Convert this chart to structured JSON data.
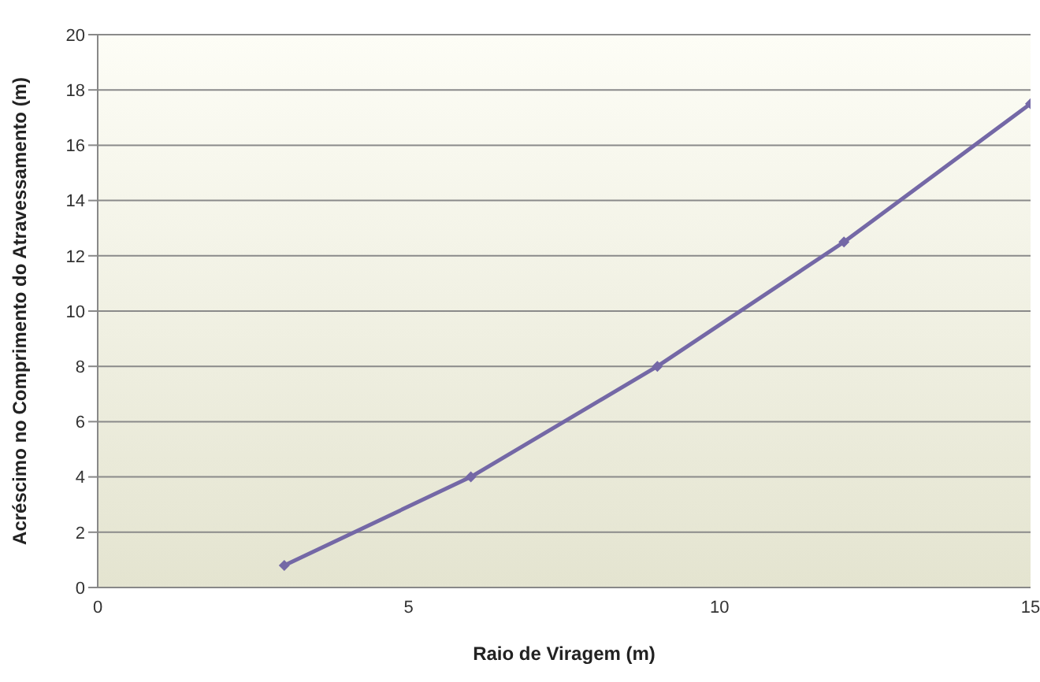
{
  "chart_data": {
    "type": "line",
    "xlabel": "Raio de Viragem (m)",
    "ylabel": "Acréscimo no Comprimento do Atravessamento (m)",
    "x": [
      3,
      6,
      9,
      12,
      15
    ],
    "series": [
      {
        "color": "#7468a6",
        "values": [
          0.8,
          4,
          8,
          12.5,
          17.5
        ]
      }
    ],
    "xlim": [
      0,
      15
    ],
    "xticks": [
      0,
      5,
      10,
      15
    ],
    "ylim": [
      0,
      20
    ],
    "yticks": [
      0,
      2,
      4,
      6,
      8,
      10,
      12,
      14,
      16,
      18,
      20
    ],
    "grid": "y",
    "legend": false,
    "marker": "diamond",
    "line_style": "solid"
  }
}
